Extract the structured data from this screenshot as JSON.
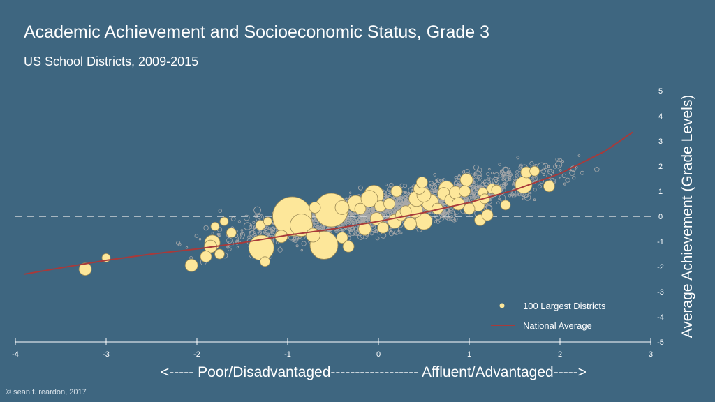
{
  "chart_data": {
    "type": "scatter",
    "title": "Academic Achievement and Socioeconomic Status, Grade 3",
    "subtitle": "US School Districts, 2009-2015",
    "xlabel": "<----- Poor/Disadvantaged------------------ Affluent/Advantaged----->",
    "ylabel": "Average Achievement (Grade Levels)",
    "xlim": [
      -4,
      3
    ],
    "ylim": [
      -5,
      5
    ],
    "x_ticks": [
      "-4",
      "-3",
      "-2",
      "-1",
      "0",
      "1",
      "2",
      "3"
    ],
    "y_ticks": [
      "5",
      "4",
      "3",
      "2",
      "1",
      "0",
      "-1",
      "-2",
      "-3",
      "-4",
      "-5"
    ],
    "grid": false,
    "legend_position": "bottom-right",
    "reference_line_y": 0,
    "series": [
      {
        "name": "100 Largest Districts",
        "color": "#fde79a",
        "points": [
          {
            "x": -3.23,
            "y": -2.1,
            "size": 9
          },
          {
            "x": -3.0,
            "y": -1.65,
            "size": 6
          },
          {
            "x": -2.06,
            "y": -1.95,
            "size": 9
          },
          {
            "x": -1.85,
            "y": -1.2,
            "size": 9
          },
          {
            "x": -1.83,
            "y": -1.05,
            "size": 11
          },
          {
            "x": -1.9,
            "y": -1.6,
            "size": 8
          },
          {
            "x": -1.75,
            "y": -1.5,
            "size": 7
          },
          {
            "x": -1.8,
            "y": -0.4,
            "size": 6
          },
          {
            "x": -1.7,
            "y": -0.2,
            "size": 6
          },
          {
            "x": -1.62,
            "y": -0.65,
            "size": 7
          },
          {
            "x": -1.29,
            "y": -1.25,
            "size": 18
          },
          {
            "x": -1.25,
            "y": -1.8,
            "size": 7
          },
          {
            "x": -1.3,
            "y": -0.35,
            "size": 7
          },
          {
            "x": -1.22,
            "y": -0.2,
            "size": 6
          },
          {
            "x": -1.07,
            "y": -0.8,
            "size": 9
          },
          {
            "x": -0.95,
            "y": 0.0,
            "size": 28
          },
          {
            "x": -0.85,
            "y": -0.35,
            "size": 16
          },
          {
            "x": -0.72,
            "y": -0.75,
            "size": 10
          },
          {
            "x": -0.6,
            "y": -1.15,
            "size": 20
          },
          {
            "x": -0.52,
            "y": 0.25,
            "size": 24
          },
          {
            "x": -0.7,
            "y": 0.35,
            "size": 8
          },
          {
            "x": -0.4,
            "y": 0.35,
            "size": 10
          },
          {
            "x": -0.4,
            "y": -0.85,
            "size": 8
          },
          {
            "x": -0.33,
            "y": -1.2,
            "size": 8
          },
          {
            "x": -0.25,
            "y": 0.5,
            "size": 12
          },
          {
            "x": -0.2,
            "y": 0.3,
            "size": 8
          },
          {
            "x": -0.15,
            "y": -0.5,
            "size": 9
          },
          {
            "x": -0.1,
            "y": 0.7,
            "size": 12
          },
          {
            "x": -0.05,
            "y": 0.85,
            "size": 14
          },
          {
            "x": -0.02,
            "y": -0.1,
            "size": 9
          },
          {
            "x": 0.02,
            "y": 0.4,
            "size": 8
          },
          {
            "x": 0.05,
            "y": -0.45,
            "size": 8
          },
          {
            "x": 0.12,
            "y": 0.5,
            "size": 8
          },
          {
            "x": 0.18,
            "y": -0.2,
            "size": 10
          },
          {
            "x": 0.2,
            "y": 1.0,
            "size": 8
          },
          {
            "x": 0.25,
            "y": 0.05,
            "size": 8
          },
          {
            "x": 0.3,
            "y": 0.2,
            "size": 8
          },
          {
            "x": 0.35,
            "y": -0.3,
            "size": 9
          },
          {
            "x": 0.4,
            "y": 0.25,
            "size": 11
          },
          {
            "x": 0.42,
            "y": 0.7,
            "size": 11
          },
          {
            "x": 0.45,
            "y": 1.1,
            "size": 8
          },
          {
            "x": 0.48,
            "y": 1.35,
            "size": 8
          },
          {
            "x": 0.5,
            "y": 0.85,
            "size": 10
          },
          {
            "x": 0.5,
            "y": -0.2,
            "size": 12
          },
          {
            "x": 0.57,
            "y": 0.55,
            "size": 12
          },
          {
            "x": 0.65,
            "y": 0.3,
            "size": 8
          },
          {
            "x": 0.72,
            "y": 0.9,
            "size": 9
          },
          {
            "x": 0.75,
            "y": 1.1,
            "size": 11
          },
          {
            "x": 0.8,
            "y": 0.65,
            "size": 9
          },
          {
            "x": 0.85,
            "y": 0.95,
            "size": 9
          },
          {
            "x": 0.88,
            "y": 0.5,
            "size": 9
          },
          {
            "x": 0.95,
            "y": 1.0,
            "size": 8
          },
          {
            "x": 0.97,
            "y": 1.45,
            "size": 9
          },
          {
            "x": 1.0,
            "y": 0.3,
            "size": 8
          },
          {
            "x": 1.1,
            "y": 0.45,
            "size": 9
          },
          {
            "x": 1.15,
            "y": 0.95,
            "size": 7
          },
          {
            "x": 1.17,
            "y": 0.7,
            "size": 7
          },
          {
            "x": 1.12,
            "y": -0.15,
            "size": 8
          },
          {
            "x": 1.2,
            "y": 0.05,
            "size": 8
          },
          {
            "x": 1.25,
            "y": 1.1,
            "size": 7
          },
          {
            "x": 1.3,
            "y": 1.05,
            "size": 7
          },
          {
            "x": 1.4,
            "y": 0.45,
            "size": 7
          },
          {
            "x": 1.6,
            "y": 1.25,
            "size": 12
          },
          {
            "x": 1.63,
            "y": 1.75,
            "size": 8
          },
          {
            "x": 1.72,
            "y": 1.8,
            "size": 7
          },
          {
            "x": 1.88,
            "y": 1.2,
            "size": 8
          }
        ]
      },
      {
        "name": "National Average",
        "color": "#a83a3a",
        "type": "line",
        "x": [
          -3.9,
          -3.5,
          -3.0,
          -2.5,
          -2.0,
          -1.5,
          -1.0,
          -0.5,
          0.0,
          0.5,
          1.0,
          1.5,
          2.0,
          2.5,
          2.8
        ],
        "y": [
          -2.3,
          -2.05,
          -1.75,
          -1.5,
          -1.3,
          -1.05,
          -0.75,
          -0.5,
          -0.2,
          0.15,
          0.55,
          1.05,
          1.7,
          2.6,
          3.35
        ]
      }
    ]
  },
  "colors": {
    "background": "#3e6680",
    "cloud": "#a9a9a9",
    "highlight": "#fde79a",
    "trend": "#a83a3a"
  },
  "legend": {
    "items": [
      {
        "label": "100 Largest Districts",
        "marker": "dot",
        "color": "#fde79a"
      },
      {
        "label": "National Average",
        "marker": "line",
        "color": "#a83a3a"
      }
    ]
  },
  "footer": {
    "copyright": "© sean f. reardon, 2017"
  }
}
